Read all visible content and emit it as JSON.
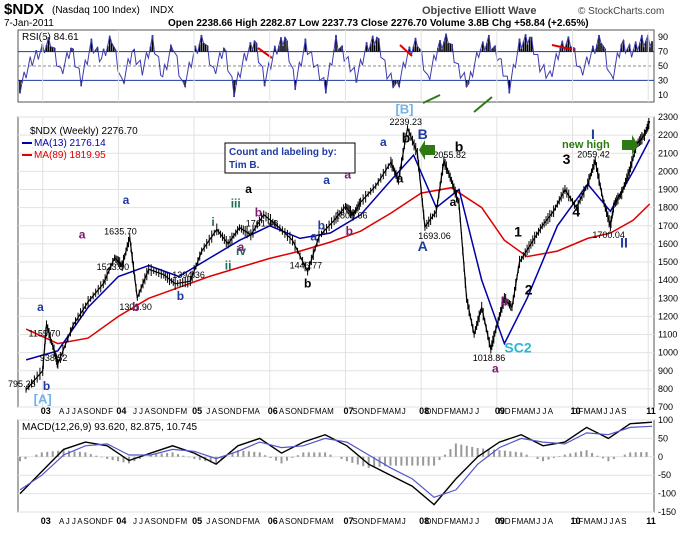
{
  "header": {
    "symbol": "$NDX",
    "symbol_desc": "(Nasdaq 100 Index)",
    "exchange": "INDX",
    "date": "7-Jan-2011",
    "ohlc_text": "Open 2238.66  High 2282.87  Low 2237.73  Close 2276.70  Volume 3.8B  Chg +58.84 (+2.65%)",
    "title_right": "Objective Elliott Wave",
    "watermark": "© StockCharts.com"
  },
  "rsi": {
    "label": "RSI(5) 84.61",
    "ylim": [
      0,
      100
    ],
    "levels": [
      70,
      50,
      30
    ],
    "ticks": [
      "90",
      "70",
      "50",
      "30",
      "10"
    ],
    "tick_values": [
      90,
      70,
      50,
      30,
      10
    ],
    "fill_color": "#000000"
  },
  "main": {
    "label_symbol": "$NDX (Weekly) 2276.70",
    "ma13_label": "MA(13) 2176.14",
    "ma89_label": "MA(89) 1819.95",
    "ma13_color": "#0000aa",
    "ma89_color": "#dd0000",
    "credit_line1": "Count and labeling by:",
    "credit_line2": "Tim B.",
    "new_high_label": "new high",
    "ylim": [
      700,
      2300
    ],
    "y_ticks": [
      "2300",
      "2200",
      "2100",
      "2000",
      "1900",
      "1800",
      "1700",
      "1600",
      "1500",
      "1400",
      "1300",
      "1200",
      "1100",
      "1000",
      "900",
      "800",
      "700"
    ]
  },
  "macd": {
    "label": "MACD(12,26,9) 93.620, 82.875, 10.745",
    "ylim": [
      -150,
      100
    ],
    "y_ticks": [
      "100",
      "50",
      "0",
      "-50",
      "-100",
      "-150"
    ]
  },
  "x_axis": {
    "year_labels": [
      "03",
      "04",
      "05",
      "06",
      "07",
      "08",
      "09",
      "10",
      "11"
    ],
    "month_labels": [
      "A",
      "J",
      "J",
      "A",
      "S",
      "O",
      "N",
      "D",
      "F",
      "M",
      "A",
      "M",
      "J",
      "J",
      "A",
      "S",
      "O",
      "N",
      "D",
      "F",
      "M",
      "A",
      "M",
      "J",
      "J",
      "A",
      "S",
      "O",
      "N",
      "D",
      "F",
      "M",
      "A",
      "M",
      "J",
      "J",
      "A",
      "S",
      "O",
      "N",
      "D",
      "F",
      "M",
      "A",
      "M",
      "J",
      "J",
      "A",
      "S",
      "O",
      "N",
      "D",
      "F",
      "M",
      "A",
      "M",
      "J",
      "J",
      "A",
      "S",
      "O",
      "N",
      "D",
      "F",
      "M",
      "A",
      "M",
      "J",
      "J",
      "A",
      "S",
      "O",
      "N",
      "D",
      "F",
      "M",
      "A",
      "M",
      "J",
      "J",
      "A",
      "S",
      "O",
      "N",
      "D",
      "F",
      "M",
      "A",
      "M",
      "J",
      "J",
      "A",
      "S",
      "O",
      "N",
      "D"
    ]
  },
  "price_labels": [
    {
      "text": "795.25",
      "t": 2002.78,
      "v": 795
    },
    {
      "text": "1155.70",
      "t": 2003.05,
      "v": 1156
    },
    {
      "text": "938.52",
      "t": 2003.2,
      "v": 938
    },
    {
      "text": "1523.50",
      "t": 2003.95,
      "v": 1523
    },
    {
      "text": "1635.70",
      "t": 2004.05,
      "v": 1636
    },
    {
      "text": "1301.90",
      "t": 2004.25,
      "v": 1302
    },
    {
      "text": "1394.36",
      "t": 2004.95,
      "v": 1394
    },
    {
      "text": "1761.48",
      "t": 2005.92,
      "v": 1761
    },
    {
      "text": "1446.77",
      "t": 2006.5,
      "v": 1447
    },
    {
      "text": "1805.66",
      "t": 2007.1,
      "v": 1806
    },
    {
      "text": "2239.23",
      "t": 2007.82,
      "v": 2239
    },
    {
      "text": "1693.06",
      "t": 2008.2,
      "v": 1693
    },
    {
      "text": "2055.82",
      "t": 2008.4,
      "v": 2056
    },
    {
      "text": "1018.86",
      "t": 2008.92,
      "v": 1019
    },
    {
      "text": "2059.42",
      "t": 2010.3,
      "v": 2059
    },
    {
      "text": "1700.04",
      "t": 2010.5,
      "v": 1700
    }
  ],
  "wave_labels": [
    {
      "text": "[A]",
      "color": "#6fb3e8",
      "t": 2003.0,
      "v": 720,
      "size": 13
    },
    {
      "text": "b",
      "color": "#1f3aa0",
      "t": 2003.05,
      "v": 795,
      "size": 12
    },
    {
      "text": "a",
      "color": "#1f3aa0",
      "t": 2002.97,
      "v": 1230,
      "size": 12
    },
    {
      "text": "a",
      "color": "#7a1a70",
      "t": 2003.52,
      "v": 1630,
      "size": 12
    },
    {
      "text": "a",
      "color": "#1f3aa0",
      "t": 2004.1,
      "v": 1820,
      "size": 12
    },
    {
      "text": "b",
      "color": "#7a1a70",
      "t": 2004.23,
      "v": 1230,
      "size": 12
    },
    {
      "text": "b",
      "color": "#1f3aa0",
      "t": 2004.82,
      "v": 1290,
      "size": 12
    },
    {
      "text": "i",
      "color": "#1a6e5a",
      "t": 2005.25,
      "v": 1700,
      "size": 12
    },
    {
      "text": "iii",
      "color": "#1a6e5a",
      "t": 2005.55,
      "v": 1800,
      "size": 12
    },
    {
      "text": "iv",
      "color": "#1a6e5a",
      "t": 2005.62,
      "v": 1540,
      "size": 12
    },
    {
      "text": "ii",
      "color": "#1a6e5a",
      "t": 2005.45,
      "v": 1460,
      "size": 12
    },
    {
      "text": "a",
      "color": "#000000",
      "t": 2005.72,
      "v": 1880,
      "size": 12
    },
    {
      "text": "b",
      "color": "#7a1a70",
      "t": 2005.85,
      "v": 1750,
      "size": 12
    },
    {
      "text": "a",
      "color": "#7a1a70",
      "t": 2005.62,
      "v": 1560,
      "size": 12
    },
    {
      "text": "b",
      "color": "#000000",
      "t": 2006.5,
      "v": 1360,
      "size": 12
    },
    {
      "text": "a",
      "color": "#1f3aa0",
      "t": 2006.58,
      "v": 1620,
      "size": 12
    },
    {
      "text": "a",
      "color": "#1f3aa0",
      "t": 2006.75,
      "v": 1930,
      "size": 12
    },
    {
      "text": "b",
      "color": "#1f3aa0",
      "t": 2006.68,
      "v": 1680,
      "size": 12
    },
    {
      "text": "a",
      "color": "#7a1a70",
      "t": 2007.03,
      "v": 1960,
      "size": 12
    },
    {
      "text": "b",
      "color": "#7a1a70",
      "t": 2007.05,
      "v": 1650,
      "size": 12
    },
    {
      "text": "a",
      "color": "#1f3aa0",
      "t": 2007.5,
      "v": 2140,
      "size": 12
    },
    {
      "text": "a",
      "color": "#000000",
      "t": 2007.72,
      "v": 1940,
      "size": 12
    },
    {
      "text": "b",
      "color": "#000000",
      "t": 2007.8,
      "v": 2160,
      "size": 14
    },
    {
      "text": "[B]",
      "color": "#6fb3e8",
      "t": 2007.78,
      "v": 2320,
      "size": 13
    },
    {
      "text": "B",
      "color": "#1f3aa0",
      "t": 2008.02,
      "v": 2180,
      "size": 14
    },
    {
      "text": "A",
      "color": "#1f3aa0",
      "t": 2008.02,
      "v": 1560,
      "size": 14
    },
    {
      "text": "a",
      "color": "#000000",
      "t": 2008.42,
      "v": 1810,
      "size": 12
    },
    {
      "text": "b",
      "color": "#000000",
      "t": 2008.5,
      "v": 2110,
      "size": 14
    },
    {
      "text": "b",
      "color": "#7a1a70",
      "t": 2009.1,
      "v": 1260,
      "size": 12
    },
    {
      "text": "SC2",
      "color": "#2ab7d0",
      "t": 2009.28,
      "v": 1000,
      "size": 14
    },
    {
      "text": "a",
      "color": "#7a1a70",
      "t": 2008.98,
      "v": 890,
      "size": 12
    },
    {
      "text": "1",
      "color": "#000000",
      "t": 2009.28,
      "v": 1640,
      "size": 14
    },
    {
      "text": "2",
      "color": "#000000",
      "t": 2009.42,
      "v": 1320,
      "size": 14
    },
    {
      "text": "3",
      "color": "#000000",
      "t": 2009.92,
      "v": 2040,
      "size": 14
    },
    {
      "text": "4",
      "color": "#000000",
      "t": 2010.05,
      "v": 1750,
      "size": 14
    },
    {
      "text": "I",
      "color": "#1f3aa0",
      "t": 2010.27,
      "v": 2180,
      "size": 14
    },
    {
      "text": "II",
      "color": "#1f3aa0",
      "t": 2010.68,
      "v": 1580,
      "size": 14
    }
  ],
  "chart_data": {
    "type": "line",
    "title": "$NDX (Nasdaq 100 Index) INDX",
    "series": [
      {
        "name": "$NDX (Weekly)",
        "x": [
          2002.78,
          2003.0,
          2003.05,
          2003.15,
          2003.2,
          2003.4,
          2003.6,
          2003.8,
          2003.95,
          2004.05,
          2004.15,
          2004.25,
          2004.4,
          2004.6,
          2004.75,
          2004.95,
          2005.1,
          2005.3,
          2005.45,
          2005.6,
          2005.75,
          2005.92,
          2006.1,
          2006.3,
          2006.5,
          2006.65,
          2006.85,
          2007.0,
          2007.1,
          2007.2,
          2007.4,
          2007.6,
          2007.7,
          2007.82,
          2007.95,
          2008.05,
          2008.2,
          2008.3,
          2008.4,
          2008.5,
          2008.6,
          2008.7,
          2008.8,
          2008.92,
          2009.0,
          2009.1,
          2009.2,
          2009.3,
          2009.45,
          2009.6,
          2009.75,
          2009.9,
          2010.05,
          2010.2,
          2010.3,
          2010.4,
          2010.5,
          2010.55,
          2010.65,
          2010.75,
          2010.85,
          2010.95,
          2011.02
        ],
        "values": [
          795,
          900,
          1156,
          1010,
          938,
          1150,
          1280,
          1380,
          1523,
          1480,
          1636,
          1302,
          1460,
          1430,
          1380,
          1394,
          1560,
          1680,
          1600,
          1690,
          1650,
          1761,
          1700,
          1620,
          1447,
          1640,
          1730,
          1806,
          1760,
          1830,
          1920,
          2050,
          1950,
          2239,
          2100,
          1693,
          1780,
          2056,
          1950,
          1820,
          1300,
          1100,
          1250,
          1019,
          1150,
          1300,
          1250,
          1500,
          1600,
          1700,
          1780,
          1900,
          1800,
          1930,
          2059,
          1850,
          1700,
          1820,
          1880,
          2000,
          2150,
          2200,
          2277
        ]
      },
      {
        "name": "MA(13)",
        "x": [
          2002.78,
          2003.2,
          2003.6,
          2004.0,
          2004.4,
          2004.8,
          2005.2,
          2005.6,
          2006.0,
          2006.4,
          2006.8,
          2007.2,
          2007.6,
          2007.9,
          2008.2,
          2008.5,
          2008.8,
          2009.1,
          2009.4,
          2009.8,
          2010.2,
          2010.5,
          2010.8,
          2011.02
        ],
        "values": [
          960,
          1010,
          1250,
          1420,
          1480,
          1420,
          1520,
          1620,
          1700,
          1630,
          1660,
          1760,
          1950,
          2090,
          1800,
          1900,
          1400,
          1050,
          1300,
          1700,
          1930,
          1780,
          2000,
          2176
        ]
      },
      {
        "name": "MA(89)",
        "x": [
          2002.78,
          2003.2,
          2003.6,
          2004.0,
          2004.4,
          2004.8,
          2005.2,
          2005.6,
          2006.0,
          2006.4,
          2006.8,
          2007.2,
          2007.6,
          2008.0,
          2008.4,
          2008.8,
          2009.1,
          2009.4,
          2009.8,
          2010.2,
          2010.5,
          2010.8,
          2011.02
        ],
        "values": [
          1130,
          1050,
          1080,
          1200,
          1300,
          1360,
          1420,
          1470,
          1520,
          1560,
          1610,
          1670,
          1770,
          1880,
          1910,
          1800,
          1620,
          1530,
          1560,
          1630,
          1660,
          1730,
          1820
        ]
      }
    ],
    "rsi_values": [
      20,
      55,
      70,
      85,
      40,
      75,
      30,
      80,
      60,
      90,
      25,
      70,
      45,
      85,
      35,
      80,
      20,
      65,
      90,
      40,
      75,
      15,
      60,
      85,
      30,
      70,
      90,
      25,
      80,
      50,
      20,
      85,
      60,
      35,
      75,
      90,
      40,
      20,
      65,
      85,
      30,
      75,
      90,
      45,
      25,
      70,
      85,
      60,
      20,
      80,
      90,
      50,
      35,
      75,
      85,
      40,
      65,
      90,
      30,
      80,
      70,
      85,
      84.61
    ],
    "macd_values": [
      -100,
      -40,
      20,
      40,
      30,
      -10,
      10,
      30,
      10,
      -20,
      30,
      50,
      10,
      40,
      60,
      30,
      -20,
      -50,
      -80,
      -130,
      -60,
      0,
      40,
      60,
      30,
      40,
      80,
      50,
      90,
      94
    ],
    "signal_values": [
      -90,
      -50,
      5,
      30,
      35,
      5,
      5,
      20,
      15,
      -5,
      15,
      40,
      25,
      30,
      50,
      40,
      5,
      -30,
      -60,
      -110,
      -90,
      -20,
      25,
      50,
      40,
      35,
      65,
      60,
      80,
      83
    ],
    "xlim": [
      2002.7,
      2011.05
    ],
    "ylim": [
      700,
      2300
    ],
    "ylabel": "",
    "xlabel": ""
  }
}
